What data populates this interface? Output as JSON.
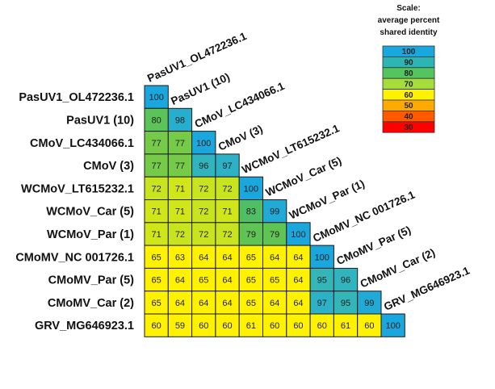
{
  "chart_data": {
    "type": "heatmap",
    "title": "",
    "labels": [
      "PasUV1_OL472236.1",
      "PasUV1 (10)",
      "CMoV_LC434066.1",
      "CMoV (3)",
      "WCMoV_LT615232.1",
      "WCMoV_Car (5)",
      "WCMoV_Par (1)",
      "CMoMV_NC 001726.1",
      "CMoMV_Par (5)",
      "CMoMV_Car (2)",
      "GRV_MG646923.1"
    ],
    "values": [
      [
        100
      ],
      [
        80,
        98
      ],
      [
        77,
        77,
        100
      ],
      [
        77,
        77,
        96,
        97
      ],
      [
        72,
        71,
        72,
        72,
        100
      ],
      [
        71,
        71,
        72,
        71,
        83,
        99
      ],
      [
        71,
        72,
        72,
        72,
        79,
        79,
        100
      ],
      [
        65,
        63,
        64,
        64,
        65,
        64,
        64,
        100
      ],
      [
        65,
        64,
        65,
        64,
        65,
        65,
        64,
        95,
        96
      ],
      [
        65,
        64,
        64,
        64,
        65,
        64,
        64,
        97,
        95,
        99
      ],
      [
        60,
        59,
        60,
        60,
        61,
        60,
        60,
        60,
        61,
        60,
        100
      ]
    ],
    "scale": {
      "title_lines": [
        "Scale:",
        "average percent",
        "shared identity"
      ],
      "steps": [
        {
          "label": "100",
          "color": "#1aa7dd"
        },
        {
          "label": "90",
          "color": "#2cb5b2"
        },
        {
          "label": "80",
          "color": "#53c45e"
        },
        {
          "label": "70",
          "color": "#a6dc3c"
        },
        {
          "label": "60",
          "color": "#fff200"
        },
        {
          "label": "50",
          "color": "#ffaa00"
        },
        {
          "label": "40",
          "color": "#ff5a00"
        },
        {
          "label": "30",
          "color": "#ff0000"
        }
      ]
    }
  }
}
